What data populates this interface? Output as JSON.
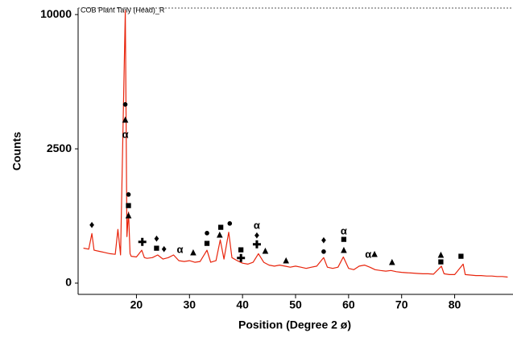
{
  "chart_data": {
    "type": "line",
    "title": "COB Plant Taily (Head)_R",
    "x_label": "Position (Degree 2 ø)",
    "y_label": "Counts",
    "yscale": "sqrt",
    "xlim": [
      9,
      91
    ],
    "ylim": [
      0,
      10370
    ],
    "xticks": [
      20,
      30,
      40,
      50,
      60,
      70,
      80
    ],
    "yticks": [
      0,
      2500,
      10000
    ],
    "series": [
      {
        "name": "COB Plant Taily (Head)_R",
        "color": "#e8240c",
        "x": [
          10,
          11,
          11.6,
          12,
          13,
          14,
          15,
          16,
          16.5,
          17,
          17.9,
          18.2,
          18.5,
          18.8,
          19,
          20,
          21,
          21.5,
          22,
          23,
          24,
          25,
          26,
          27,
          28,
          29,
          30,
          31,
          32,
          33.3,
          34,
          35,
          35.8,
          36.5,
          37.4,
          38,
          39,
          40,
          41,
          42,
          43,
          44,
          45,
          46,
          47,
          48,
          49,
          50,
          51,
          52,
          53,
          54,
          55.3,
          56,
          57,
          58,
          59,
          60,
          61,
          62,
          63,
          64,
          65,
          66,
          67,
          68,
          69,
          70,
          71,
          72,
          73,
          74,
          75,
          76,
          77.5,
          78,
          79,
          80,
          81.6,
          82,
          83,
          84,
          85,
          86,
          87,
          88,
          89,
          90
        ],
        "values": [
          170,
          160,
          340,
          150,
          140,
          130,
          120,
          115,
          400,
          110,
          10300,
          300,
          700,
          120,
          100,
          95,
          150,
          90,
          85,
          90,
          110,
          80,
          90,
          110,
          70,
          65,
          70,
          60,
          65,
          150,
          60,
          70,
          260,
          80,
          360,
          90,
          70,
          55,
          50,
          60,
          120,
          60,
          45,
          40,
          45,
          40,
          35,
          40,
          35,
          30,
          35,
          40,
          90,
          35,
          30,
          35,
          95,
          30,
          25,
          40,
          45,
          35,
          25,
          22,
          20,
          22,
          18,
          16,
          15,
          14,
          13,
          12,
          12,
          11,
          40,
          12,
          10,
          10,
          50,
          10,
          9,
          8,
          8,
          7,
          7,
          6,
          6,
          5
        ]
      }
    ],
    "annotations": [
      {
        "text": "♦",
        "x": 11.6,
        "y": 465
      },
      {
        "text": "●",
        "x": 17.9,
        "y": 4420
      },
      {
        "text": "▲",
        "x": 17.9,
        "y": 3694
      },
      {
        "text": "α",
        "x": 17.9,
        "y": 3034
      },
      {
        "text": "●",
        "x": 18.5,
        "y": 1085
      },
      {
        "text": "■",
        "x": 18.5,
        "y": 826
      },
      {
        "text": "▲",
        "x": 18.5,
        "y": 633
      },
      {
        "text": "✚",
        "x": 21.1,
        "y": 224
      },
      {
        "text": "♦",
        "x": 23.8,
        "y": 271
      },
      {
        "text": "■",
        "x": 23.8,
        "y": 166
      },
      {
        "text": "♦",
        "x": 25.2,
        "y": 158
      },
      {
        "text": "α",
        "x": 28.2,
        "y": 151
      },
      {
        "text": "▲",
        "x": 30.7,
        "y": 130
      },
      {
        "text": "●",
        "x": 33.3,
        "y": 345
      },
      {
        "text": "■",
        "x": 33.3,
        "y": 215
      },
      {
        "text": "■",
        "x": 35.9,
        "y": 427
      },
      {
        "text": "▲",
        "x": 35.7,
        "y": 323
      },
      {
        "text": "●",
        "x": 37.6,
        "y": 491
      },
      {
        "text": "■",
        "x": 39.7,
        "y": 151
      },
      {
        "text": "✚",
        "x": 39.7,
        "y": 81
      },
      {
        "text": "α",
        "x": 42.7,
        "y": 452
      },
      {
        "text": "♦",
        "x": 42.7,
        "y": 312
      },
      {
        "text": "✚",
        "x": 42.7,
        "y": 198
      },
      {
        "text": "▲",
        "x": 44.3,
        "y": 144
      },
      {
        "text": "▲",
        "x": 48.2,
        "y": 70
      },
      {
        "text": "♦",
        "x": 55.3,
        "y": 252
      },
      {
        "text": "●",
        "x": 55.3,
        "y": 137
      },
      {
        "text": "α",
        "x": 59.1,
        "y": 368
      },
      {
        "text": "■",
        "x": 59.1,
        "y": 262
      },
      {
        "text": "▲",
        "x": 59.1,
        "y": 151
      },
      {
        "text": "α",
        "x": 63.7,
        "y": 110
      },
      {
        "text": "▲",
        "x": 64.9,
        "y": 116
      },
      {
        "text": "▲",
        "x": 68.2,
        "y": 61
      },
      {
        "text": "▲",
        "x": 77.4,
        "y": 110
      },
      {
        "text": "■",
        "x": 77.4,
        "y": 61
      },
      {
        "text": "■",
        "x": 81.2,
        "y": 98
      }
    ]
  }
}
